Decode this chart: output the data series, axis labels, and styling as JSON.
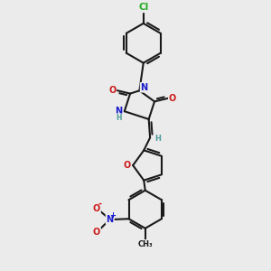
{
  "background_color": "#ebebeb",
  "bond_color": "#1a1a1a",
  "bond_width": 1.5,
  "atom_colors": {
    "C": "#1a1a1a",
    "N": "#1a1acc",
    "O": "#cc1a1a",
    "Cl": "#22aa22",
    "H": "#4a9a9a"
  },
  "font_size": 7.0
}
